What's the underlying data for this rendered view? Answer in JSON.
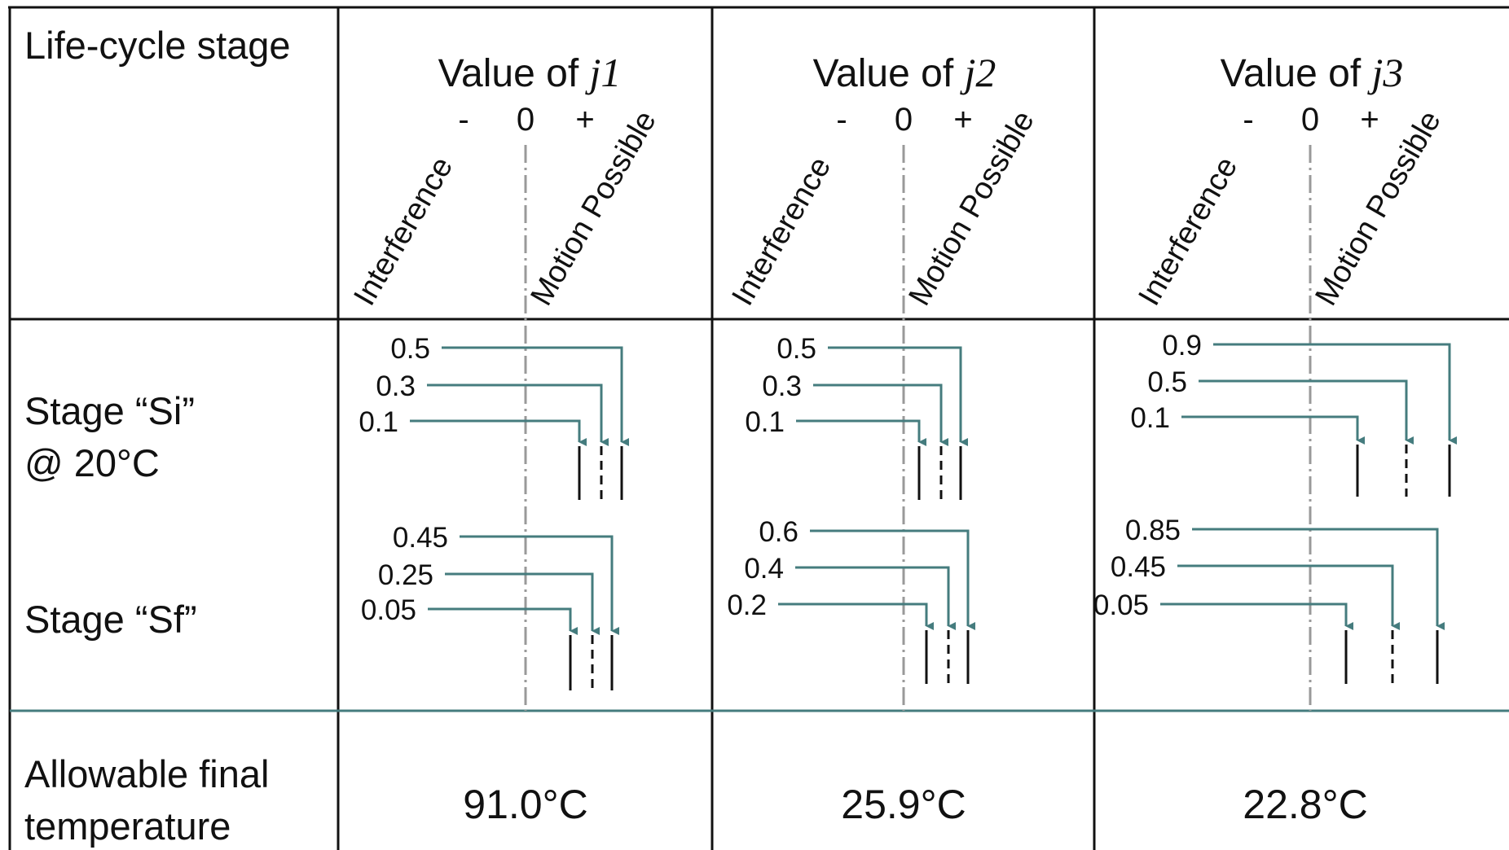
{
  "header": {
    "stage_label": "Life-cycle stage",
    "columns": [
      {
        "prefix": "Value of ",
        "var_letter": "j",
        "var_num": "1"
      },
      {
        "prefix": "Value of ",
        "var_letter": "j",
        "var_num": "2"
      },
      {
        "prefix": "Value of ",
        "var_letter": "j",
        "var_num": "3"
      }
    ],
    "sign_minus": "-",
    "sign_zero": "0",
    "sign_plus": "+",
    "interference_label": "Interference",
    "motion_label": "Motion Possible"
  },
  "rows": {
    "si_line1": "Stage “Si”",
    "si_line2": "@ 20°C",
    "sf_line1": "Stage “Sf”",
    "allowable_line1": "Allowable final",
    "allowable_line2": "temperature"
  },
  "columns": [
    {
      "si": [
        "0.5",
        "0.3",
        "0.1"
      ],
      "sf": [
        "0.45",
        "0.25",
        "0.05"
      ],
      "temperature": "91.0°C",
      "temperature_color": "#111111"
    },
    {
      "si": [
        "0.5",
        "0.3",
        "0.1"
      ],
      "sf": [
        "0.6",
        "0.4",
        "0.2"
      ],
      "temperature": "25.9°C",
      "temperature_color": "#111111"
    },
    {
      "si": [
        "0.9",
        "0.5",
        "0.1"
      ],
      "sf": [
        "0.85",
        "0.45",
        "0.05"
      ],
      "temperature": "22.8°C",
      "temperature_color": "#ff2a1a"
    }
  ],
  "colors": {
    "arrow": "#457c7e",
    "row_divider": "#457c7e",
    "grid": "#111111",
    "zero_line": "#999999"
  }
}
